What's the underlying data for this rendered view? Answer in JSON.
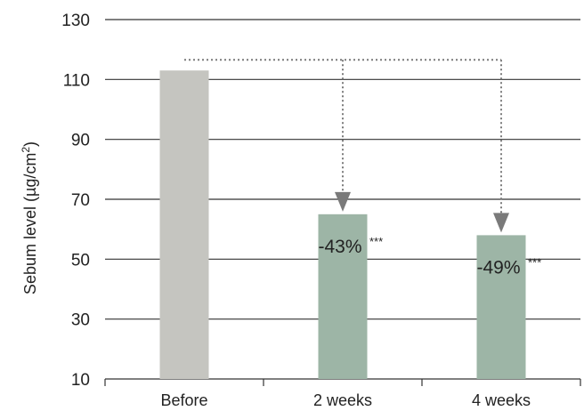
{
  "chart_data": {
    "type": "bar",
    "categories": [
      "Before",
      "2 weeks",
      "4 weeks"
    ],
    "values": [
      113,
      65,
      58
    ],
    "ylabel_main": "Sebum level (µg/cm",
    "ylabel_sup": "2",
    "ylabel_close": ")",
    "ylim": [
      10,
      130
    ],
    "yticks": [
      10,
      30,
      50,
      70,
      90,
      110,
      130
    ],
    "grid": true,
    "colors": {
      "Before": "#c5c5c0",
      "2 weeks": "#9db5a6",
      "4 weeks": "#9db5a6"
    },
    "arrow_color": "#7a7a7a",
    "annotations": [
      {
        "category": "2 weeks",
        "text": "-43%",
        "significance": "***"
      },
      {
        "category": "4 weeks",
        "text": "-49%",
        "significance": "***"
      }
    ]
  }
}
